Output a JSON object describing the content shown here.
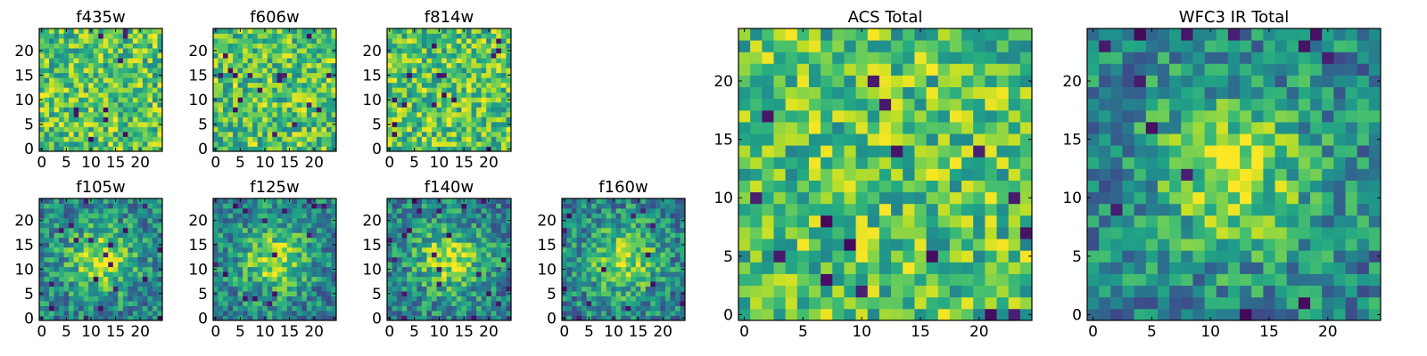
{
  "colors": {
    "colormap": "viridis",
    "background": "#ffffff",
    "axes_edge": "#000000"
  },
  "chart_data": [
    {
      "type": "heatmap",
      "title": "f435w",
      "xticks": [
        "0",
        "5",
        "10",
        "15",
        "20"
      ],
      "yticks": [
        "0",
        "5",
        "10",
        "15",
        "20"
      ],
      "xlim": [
        0,
        25
      ],
      "ylim": [
        0,
        25
      ],
      "grid_size": 25,
      "pattern": "noise",
      "seed": 11
    },
    {
      "type": "heatmap",
      "title": "f606w",
      "xticks": [
        "0",
        "5",
        "10",
        "15",
        "20"
      ],
      "yticks": [
        "0",
        "5",
        "10",
        "15",
        "20"
      ],
      "xlim": [
        0,
        25
      ],
      "ylim": [
        0,
        25
      ],
      "grid_size": 25,
      "pattern": "noise",
      "seed": 23
    },
    {
      "type": "heatmap",
      "title": "f814w",
      "xticks": [
        "0",
        "5",
        "10",
        "15",
        "20"
      ],
      "yticks": [
        "0",
        "5",
        "10",
        "15",
        "20"
      ],
      "xlim": [
        0,
        25
      ],
      "ylim": [
        0,
        25
      ],
      "grid_size": 25,
      "pattern": "noise",
      "seed": 37
    },
    {
      "type": "heatmap",
      "title": "f105w",
      "xticks": [
        "0",
        "5",
        "10",
        "15",
        "20"
      ],
      "yticks": [
        "0",
        "5",
        "10",
        "15",
        "20"
      ],
      "xlim": [
        0,
        25
      ],
      "ylim": [
        0,
        25
      ],
      "grid_size": 25,
      "pattern": "centered-source",
      "seed": 41
    },
    {
      "type": "heatmap",
      "title": "f125w",
      "xticks": [
        "0",
        "5",
        "10",
        "15",
        "20"
      ],
      "yticks": [
        "0",
        "5",
        "10",
        "15",
        "20"
      ],
      "xlim": [
        0,
        25
      ],
      "ylim": [
        0,
        25
      ],
      "grid_size": 25,
      "pattern": "centered-source",
      "seed": 53
    },
    {
      "type": "heatmap",
      "title": "f140w",
      "xticks": [
        "0",
        "5",
        "10",
        "15",
        "20"
      ],
      "yticks": [
        "0",
        "5",
        "10",
        "15",
        "20"
      ],
      "xlim": [
        0,
        25
      ],
      "ylim": [
        0,
        25
      ],
      "grid_size": 25,
      "pattern": "centered-source",
      "seed": 67
    },
    {
      "type": "heatmap",
      "title": "f160w",
      "xticks": [
        "0",
        "5",
        "10",
        "15",
        "20"
      ],
      "yticks": [
        "0",
        "5",
        "10",
        "15",
        "20"
      ],
      "xlim": [
        0,
        25
      ],
      "ylim": [
        0,
        25
      ],
      "grid_size": 25,
      "pattern": "centered-source",
      "seed": 79
    },
    {
      "type": "heatmap",
      "title": "ACS Total",
      "xticks": [
        "0",
        "5",
        "10",
        "15",
        "20"
      ],
      "yticks": [
        "0",
        "5",
        "10",
        "15",
        "20"
      ],
      "xlim": [
        0,
        25
      ],
      "ylim": [
        0,
        25
      ],
      "grid_size": 25,
      "pattern": "noise",
      "seed": 83
    },
    {
      "type": "heatmap",
      "title": "WFC3 IR Total",
      "xticks": [
        "0",
        "5",
        "10",
        "15",
        "20"
      ],
      "yticks": [
        "0",
        "5",
        "10",
        "15",
        "20"
      ],
      "xlim": [
        0,
        25
      ],
      "ylim": [
        0,
        25
      ],
      "grid_size": 25,
      "pattern": "centered-source",
      "seed": 97
    }
  ]
}
